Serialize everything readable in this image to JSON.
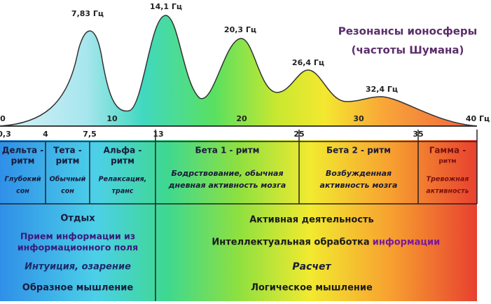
{
  "title": "Резонансы ионосферы",
  "subtitle": "(частоты Шумана)",
  "peaks": [
    "7,83 Гц",
    "14,1 Гц",
    "20,3 Гц",
    "26,4 Гц",
    "32,4 Гц"
  ],
  "top_scale": [
    "0",
    "10",
    "20",
    "30",
    "40 Гц"
  ],
  "bottom_scale": [
    "0,3",
    "4",
    "7,5",
    "13",
    "25",
    "35"
  ],
  "rhythms": [
    {
      "name": [
        "Дельта -",
        "ритм"
      ],
      "desc": [
        "Глубокий",
        "сон"
      ]
    },
    {
      "name": [
        "Тета -",
        "ритм"
      ],
      "desc": [
        "Обычный",
        "сон"
      ]
    },
    {
      "name": [
        "Альфа -",
        "ритм"
      ],
      "desc": [
        "Релаксация,",
        "транс"
      ]
    },
    {
      "name": [
        "Бета 1 - ритм"
      ],
      "desc": [
        "Бодрствование, обычная",
        "дневная активность мозга"
      ]
    },
    {
      "name": [
        "Бета 2 - ритм"
      ],
      "desc": [
        "Возбужденная",
        "активность мозга"
      ]
    },
    {
      "name": [
        "Гамма -",
        "ритм"
      ],
      "desc": [
        "Тревожная",
        "активность"
      ]
    }
  ],
  "left_panel": {
    "rest": "Отдых",
    "receiving": [
      "Прием информации из",
      "информационного поля"
    ],
    "intuition": "Интуиция, озарение",
    "thinking": "Образное мышление"
  },
  "right_panel": {
    "activity": "Активная деятельность",
    "processing": "Интеллектуальная обработка",
    "information": "информации",
    "calculation": "Расчет",
    "thinking": "Логическое мышление"
  }
}
